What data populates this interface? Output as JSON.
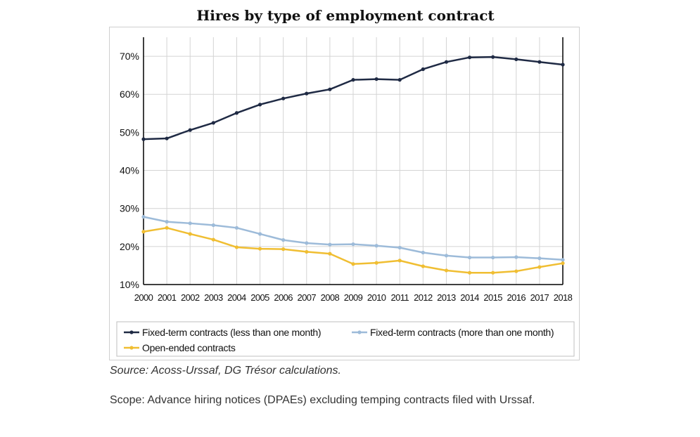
{
  "header": {
    "title": "Hires by type of employment contract"
  },
  "chart_data": {
    "type": "line",
    "title": "Hires by type of employment contract",
    "xlabel": "",
    "ylabel": "",
    "x": [
      "2000",
      "2001",
      "2002",
      "2003",
      "2004",
      "2005",
      "2006",
      "2007",
      "2008",
      "2009",
      "2010",
      "2011",
      "2012",
      "2013",
      "2014",
      "2015",
      "2016",
      "2017",
      "2018"
    ],
    "ylim": [
      10,
      75
    ],
    "yticks": [
      10,
      20,
      30,
      40,
      50,
      60,
      70
    ],
    "ytick_labels": [
      "10%",
      "20%",
      "30%",
      "40%",
      "50%",
      "60%",
      "70%"
    ],
    "grid": true,
    "legend_position": "bottom",
    "series": [
      {
        "name": "Fixed-term contracts (less than one month)",
        "color": "#1f2a44",
        "values": [
          48.2,
          48.4,
          50.6,
          52.5,
          55.1,
          57.3,
          58.9,
          60.2,
          61.3,
          63.8,
          64.0,
          63.8,
          66.6,
          68.5,
          69.7,
          69.8,
          69.2,
          68.5,
          67.8
        ]
      },
      {
        "name": "Fixed-term contracts (more than one month)",
        "color": "#9dbbd9",
        "values": [
          27.8,
          26.5,
          26.1,
          25.6,
          24.9,
          23.3,
          21.7,
          20.9,
          20.5,
          20.6,
          20.2,
          19.7,
          18.4,
          17.6,
          17.1,
          17.1,
          17.2,
          16.9,
          16.5
        ]
      },
      {
        "name": "Open-ended contracts",
        "color": "#f0be32",
        "values": [
          23.9,
          24.9,
          23.3,
          21.8,
          19.8,
          19.4,
          19.3,
          18.6,
          18.1,
          15.4,
          15.7,
          16.3,
          14.8,
          13.7,
          13.1,
          13.1,
          13.5,
          14.6,
          15.6
        ]
      }
    ]
  },
  "footer": {
    "source": "Source: Acoss-Urssaf, DG Trésor calculations.",
    "scope": "Scope: Advance hiring notices (DPAEs) excluding temping contracts filed with Urssaf."
  }
}
